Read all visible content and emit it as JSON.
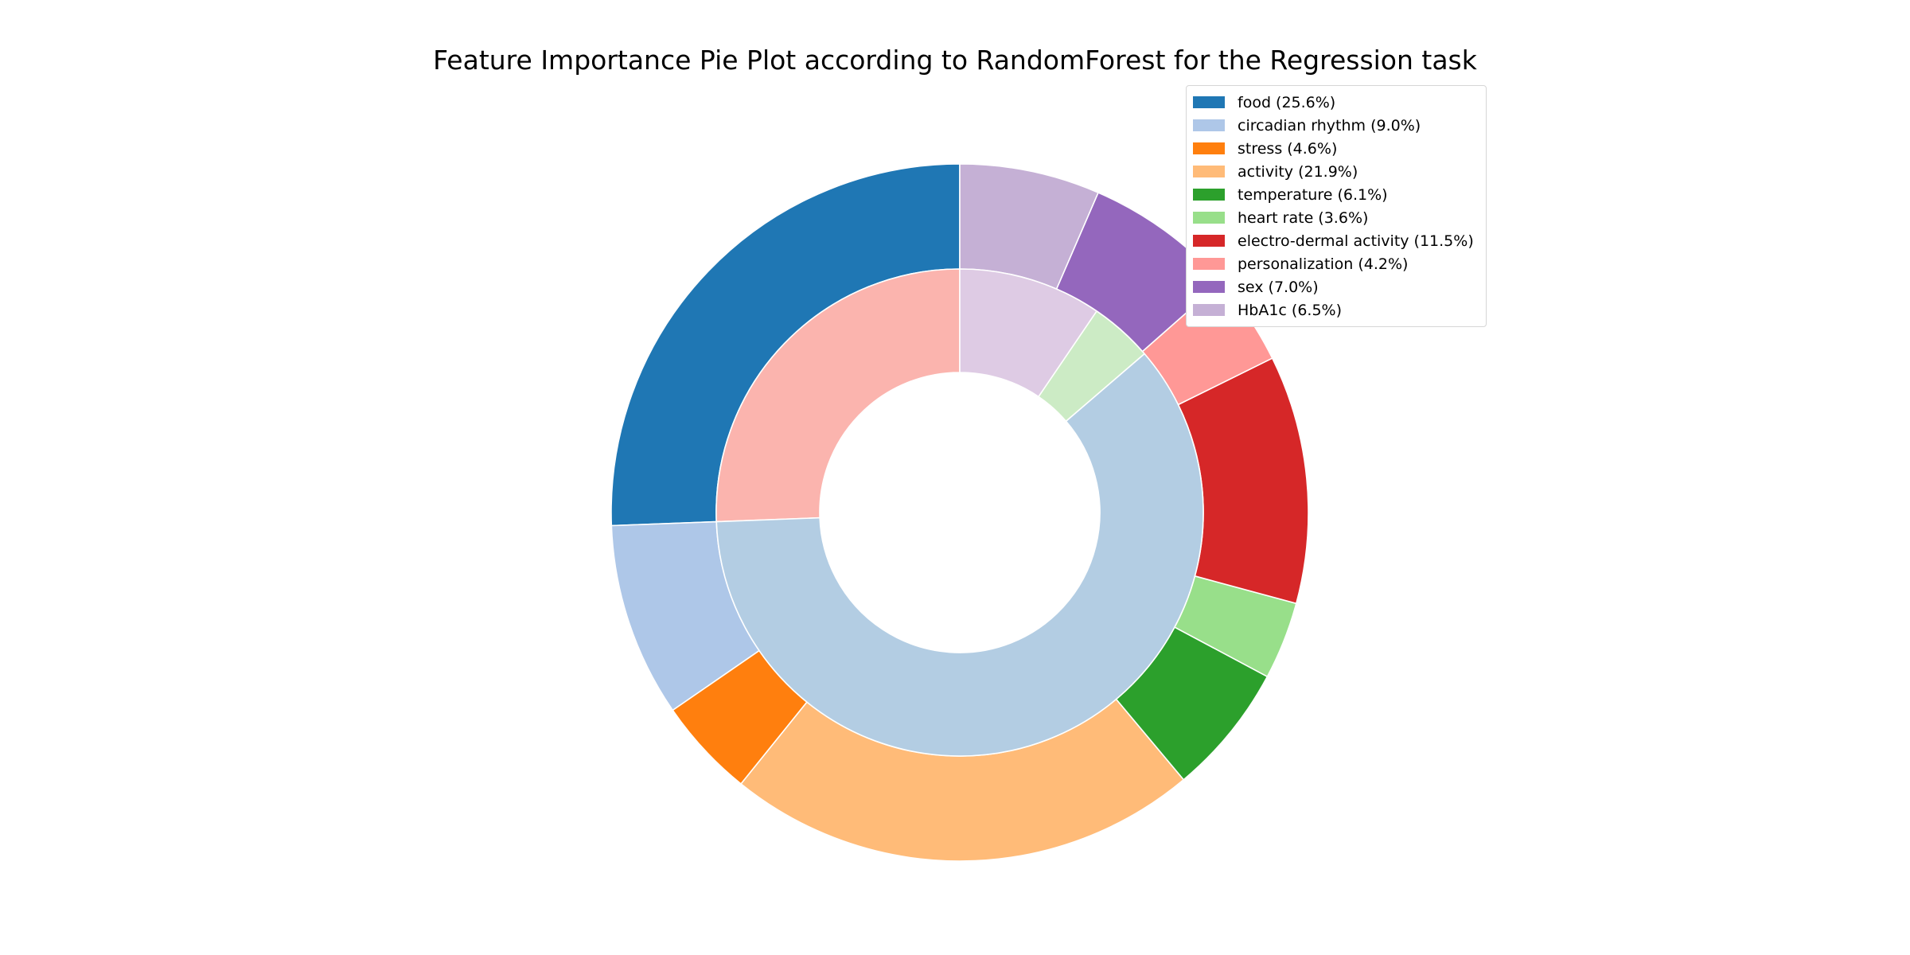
{
  "chart_data": {
    "type": "pie",
    "title": "Feature Importance Pie Plot according to RandomForest for the Regression task",
    "legend_position": "top-right",
    "outer_ring": [
      {
        "label": "food",
        "value": 25.6,
        "legend": "food (25.6%)",
        "color": "#1f77b4"
      },
      {
        "label": "circadian rhythm",
        "value": 9.0,
        "legend": "circadian rhythm (9.0%)",
        "color": "#aec7e8"
      },
      {
        "label": "stress",
        "value": 4.6,
        "legend": "stress (4.6%)",
        "color": "#ff7f0e"
      },
      {
        "label": "activity",
        "value": 21.9,
        "legend": "activity (21.9%)",
        "color": "#ffbb78"
      },
      {
        "label": "temperature",
        "value": 6.1,
        "legend": "temperature (6.1%)",
        "color": "#2ca02c"
      },
      {
        "label": "heart rate",
        "value": 3.6,
        "legend": "heart rate (3.6%)",
        "color": "#98df8a"
      },
      {
        "label": "electro-dermal activity",
        "value": 11.5,
        "legend": "electro-dermal activity (11.5%)",
        "color": "#d62728"
      },
      {
        "label": "personalization",
        "value": 4.2,
        "legend": "personalization (4.2%)",
        "color": "#ff9896"
      },
      {
        "label": "sex",
        "value": 7.0,
        "legend": "sex (7.0%)",
        "color": "#9467bd"
      },
      {
        "label": "HbA1c",
        "value": 6.5,
        "legend": "HbA1c (6.5%)",
        "color": "#c5b0d5"
      }
    ],
    "inner_ring": [
      {
        "value": 25.6,
        "color": "#fbb4ae"
      },
      {
        "value": 60.7,
        "color": "#b3cde3"
      },
      {
        "value": 4.2,
        "color": "#ccebc5"
      },
      {
        "value": 9.5,
        "color": "#decbe4"
      }
    ]
  }
}
